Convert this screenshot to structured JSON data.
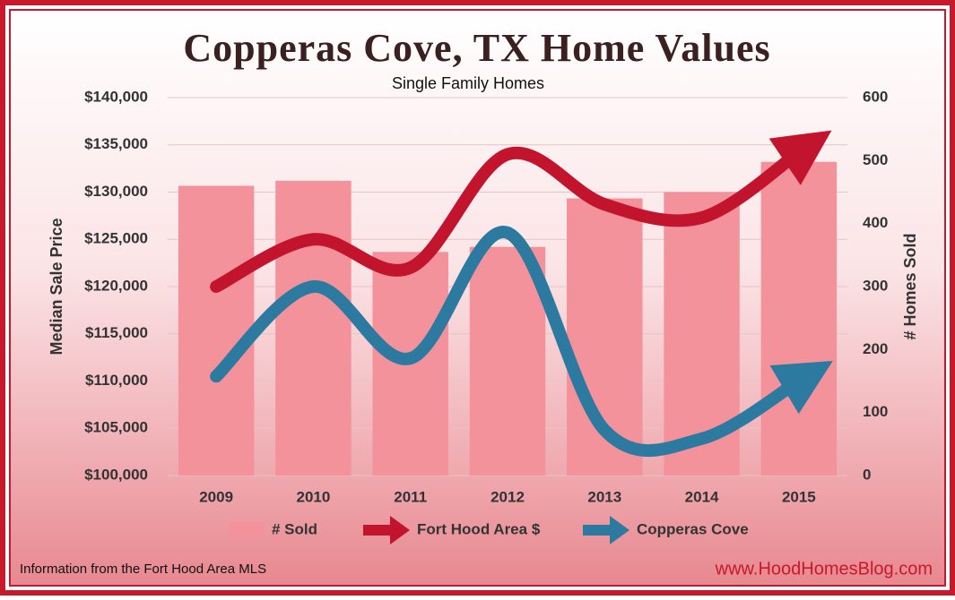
{
  "chart_data": {
    "type": "combo",
    "title": "Copperas Cove, TX Home Values",
    "subtitle": "Single Family Homes",
    "y_label": "Median Sale Price",
    "y2_label": "# Homes Sold",
    "categories": [
      "2009",
      "2010",
      "2011",
      "2012",
      "2013",
      "2014",
      "2015"
    ],
    "series": [
      {
        "name": "# Sold",
        "type": "bar",
        "axis": "y2",
        "color": "#f4929c",
        "values": [
          460,
          468,
          355,
          363,
          440,
          450,
          498
        ]
      },
      {
        "name": "Fort Hood Area $",
        "type": "line",
        "color": "#c3142d",
        "values": [
          120000,
          125000,
          122000,
          134000,
          128700,
          127300,
          134200
        ]
      },
      {
        "name": "Copperas Cove",
        "type": "line",
        "color": "#2d7aa0",
        "values": [
          110500,
          120000,
          112400,
          125700,
          104800,
          103900,
          110000
        ]
      }
    ],
    "ylim": [
      100000,
      140000
    ],
    "yticks": [
      {
        "value": 100000,
        "label": "$100,000"
      },
      {
        "value": 105000,
        "label": "$105,000"
      },
      {
        "value": 110000,
        "label": "$110,000"
      },
      {
        "value": 115000,
        "label": "$115,000"
      },
      {
        "value": 120000,
        "label": "$120,000"
      },
      {
        "value": 125000,
        "label": "$125,000"
      },
      {
        "value": 130000,
        "label": "$130,000"
      },
      {
        "value": 135000,
        "label": "$135,000"
      },
      {
        "value": 140000,
        "label": "$140,000"
      }
    ],
    "y2lim": [
      0,
      600
    ],
    "y2ticks": [
      0,
      100,
      200,
      300,
      400,
      500,
      600
    ],
    "grid": true,
    "legend": "bottom",
    "source": "Information from the Fort Hood Area MLS",
    "url": "www.HoodHomesBlog.com"
  }
}
